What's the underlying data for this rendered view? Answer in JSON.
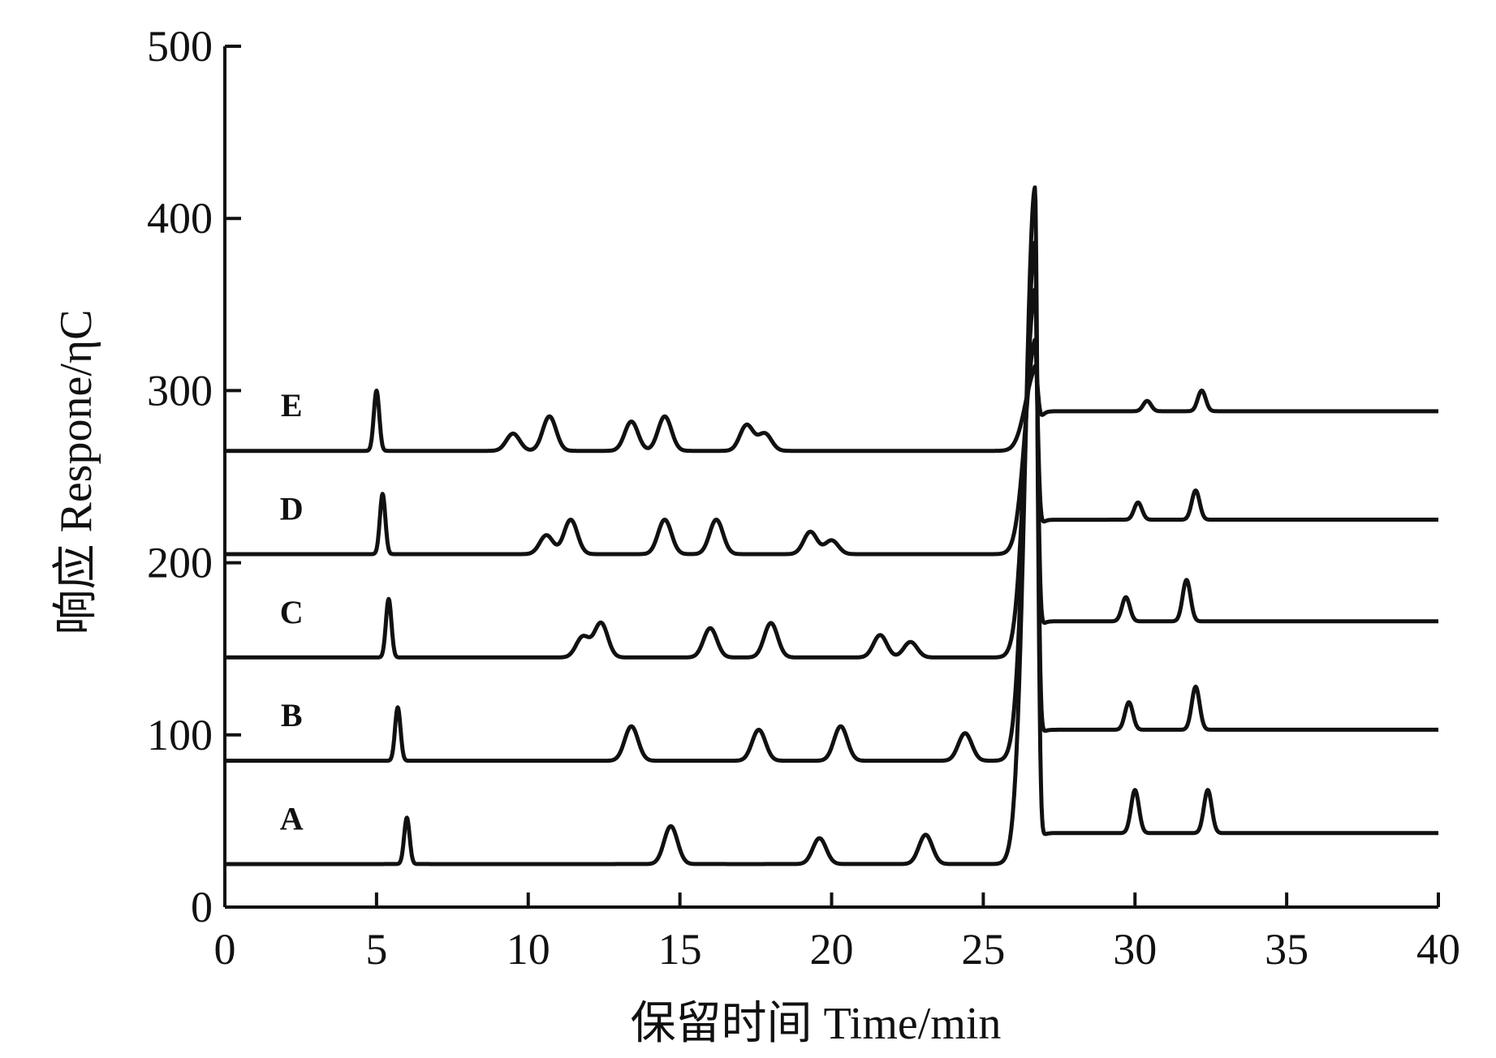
{
  "chart_data": {
    "type": "line",
    "xlabel": "保留时间 Time/min",
    "ylabel": "响应 Respone/ηC",
    "xlim": [
      0,
      40
    ],
    "ylim": [
      0,
      500
    ],
    "xticks": [
      0,
      5,
      10,
      15,
      20,
      25,
      30,
      35,
      40
    ],
    "yticks": [
      0,
      100,
      200,
      300,
      400,
      500
    ],
    "grid": false,
    "legend": "none",
    "line_color": "#111111",
    "series": [
      {
        "name": "A",
        "baseline_before": 25,
        "baseline_after": 43,
        "peaks": [
          {
            "x": 6.0,
            "y": 52
          },
          {
            "x": 14.7,
            "y": 47
          },
          {
            "x": 19.6,
            "y": 40
          },
          {
            "x": 23.1,
            "y": 42
          },
          {
            "x": 26.7,
            "y": 432
          },
          {
            "x": 30.0,
            "y": 68
          },
          {
            "x": 32.4,
            "y": 68
          }
        ]
      },
      {
        "name": "B",
        "baseline_before": 85,
        "baseline_after": 103,
        "peaks": [
          {
            "x": 5.7,
            "y": 116
          },
          {
            "x": 13.4,
            "y": 105
          },
          {
            "x": 17.6,
            "y": 103
          },
          {
            "x": 20.3,
            "y": 105
          },
          {
            "x": 24.4,
            "y": 101
          },
          {
            "x": 26.7,
            "y": 400
          },
          {
            "x": 29.8,
            "y": 119
          },
          {
            "x": 32.0,
            "y": 128
          }
        ]
      },
      {
        "name": "C",
        "baseline_before": 145,
        "baseline_after": 166,
        "peaks": [
          {
            "x": 5.4,
            "y": 179
          },
          {
            "x": 11.8,
            "y": 157
          },
          {
            "x": 12.4,
            "y": 165
          },
          {
            "x": 16.0,
            "y": 162
          },
          {
            "x": 18.0,
            "y": 165
          },
          {
            "x": 21.6,
            "y": 158
          },
          {
            "x": 22.6,
            "y": 154
          },
          {
            "x": 26.7,
            "y": 375
          },
          {
            "x": 29.7,
            "y": 180
          },
          {
            "x": 31.7,
            "y": 190
          }
        ]
      },
      {
        "name": "D",
        "baseline_before": 205,
        "baseline_after": 225,
        "peaks": [
          {
            "x": 5.2,
            "y": 240
          },
          {
            "x": 10.6,
            "y": 216
          },
          {
            "x": 11.4,
            "y": 225
          },
          {
            "x": 14.5,
            "y": 225
          },
          {
            "x": 16.2,
            "y": 225
          },
          {
            "x": 19.3,
            "y": 218
          },
          {
            "x": 20.0,
            "y": 213
          },
          {
            "x": 26.7,
            "y": 345
          },
          {
            "x": 30.1,
            "y": 235
          },
          {
            "x": 32.0,
            "y": 242
          }
        ]
      },
      {
        "name": "E",
        "baseline_before": 265,
        "baseline_after": 288,
        "peaks": [
          {
            "x": 5.0,
            "y": 300
          },
          {
            "x": 9.5,
            "y": 275
          },
          {
            "x": 10.7,
            "y": 285
          },
          {
            "x": 13.4,
            "y": 282
          },
          {
            "x": 14.5,
            "y": 285
          },
          {
            "x": 17.2,
            "y": 280
          },
          {
            "x": 17.8,
            "y": 275
          },
          {
            "x": 26.7,
            "y": 332
          },
          {
            "x": 30.4,
            "y": 294
          },
          {
            "x": 32.2,
            "y": 300
          }
        ]
      }
    ]
  }
}
